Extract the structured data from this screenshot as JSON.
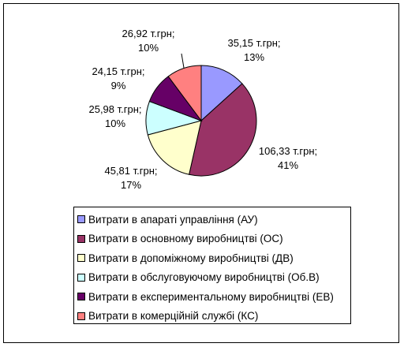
{
  "chart_data": {
    "type": "pie",
    "title": "",
    "slices": [
      {
        "label": "Витрати в апараті управління (АУ)",
        "value": 35.15,
        "value_text": "35,15 т.грн;",
        "pct_text": "13%",
        "color": "#9999ff"
      },
      {
        "label": "Витрати в основному виробництві (ОС)",
        "value": 106.33,
        "value_text": "106,33 т.грн;",
        "pct_text": "41%",
        "color": "#993366"
      },
      {
        "label": "Витрати в допоміжному виробництві (ДВ)",
        "value": 45.81,
        "value_text": "45,81 т.грн;",
        "pct_text": "17%",
        "color": "#ffffcc"
      },
      {
        "label": "Витрати в обслуговуючому виробництві (Об.В)",
        "value": 25.98,
        "value_text": "25,98 т.грн;",
        "pct_text": "10%",
        "color": "#ccffff"
      },
      {
        "label": "Витрати в експериментальному виробництві (ЕВ)",
        "value": 24.15,
        "value_text": "24,15 т.грн;",
        "pct_text": "9%",
        "color": "#660066"
      },
      {
        "label": "Витрати в комерційній службі (КС)",
        "value": 26.92,
        "value_text": "26,92 т.грн;",
        "pct_text": "10%",
        "color": "#ff8080"
      }
    ],
    "legend_position": "bottom"
  }
}
